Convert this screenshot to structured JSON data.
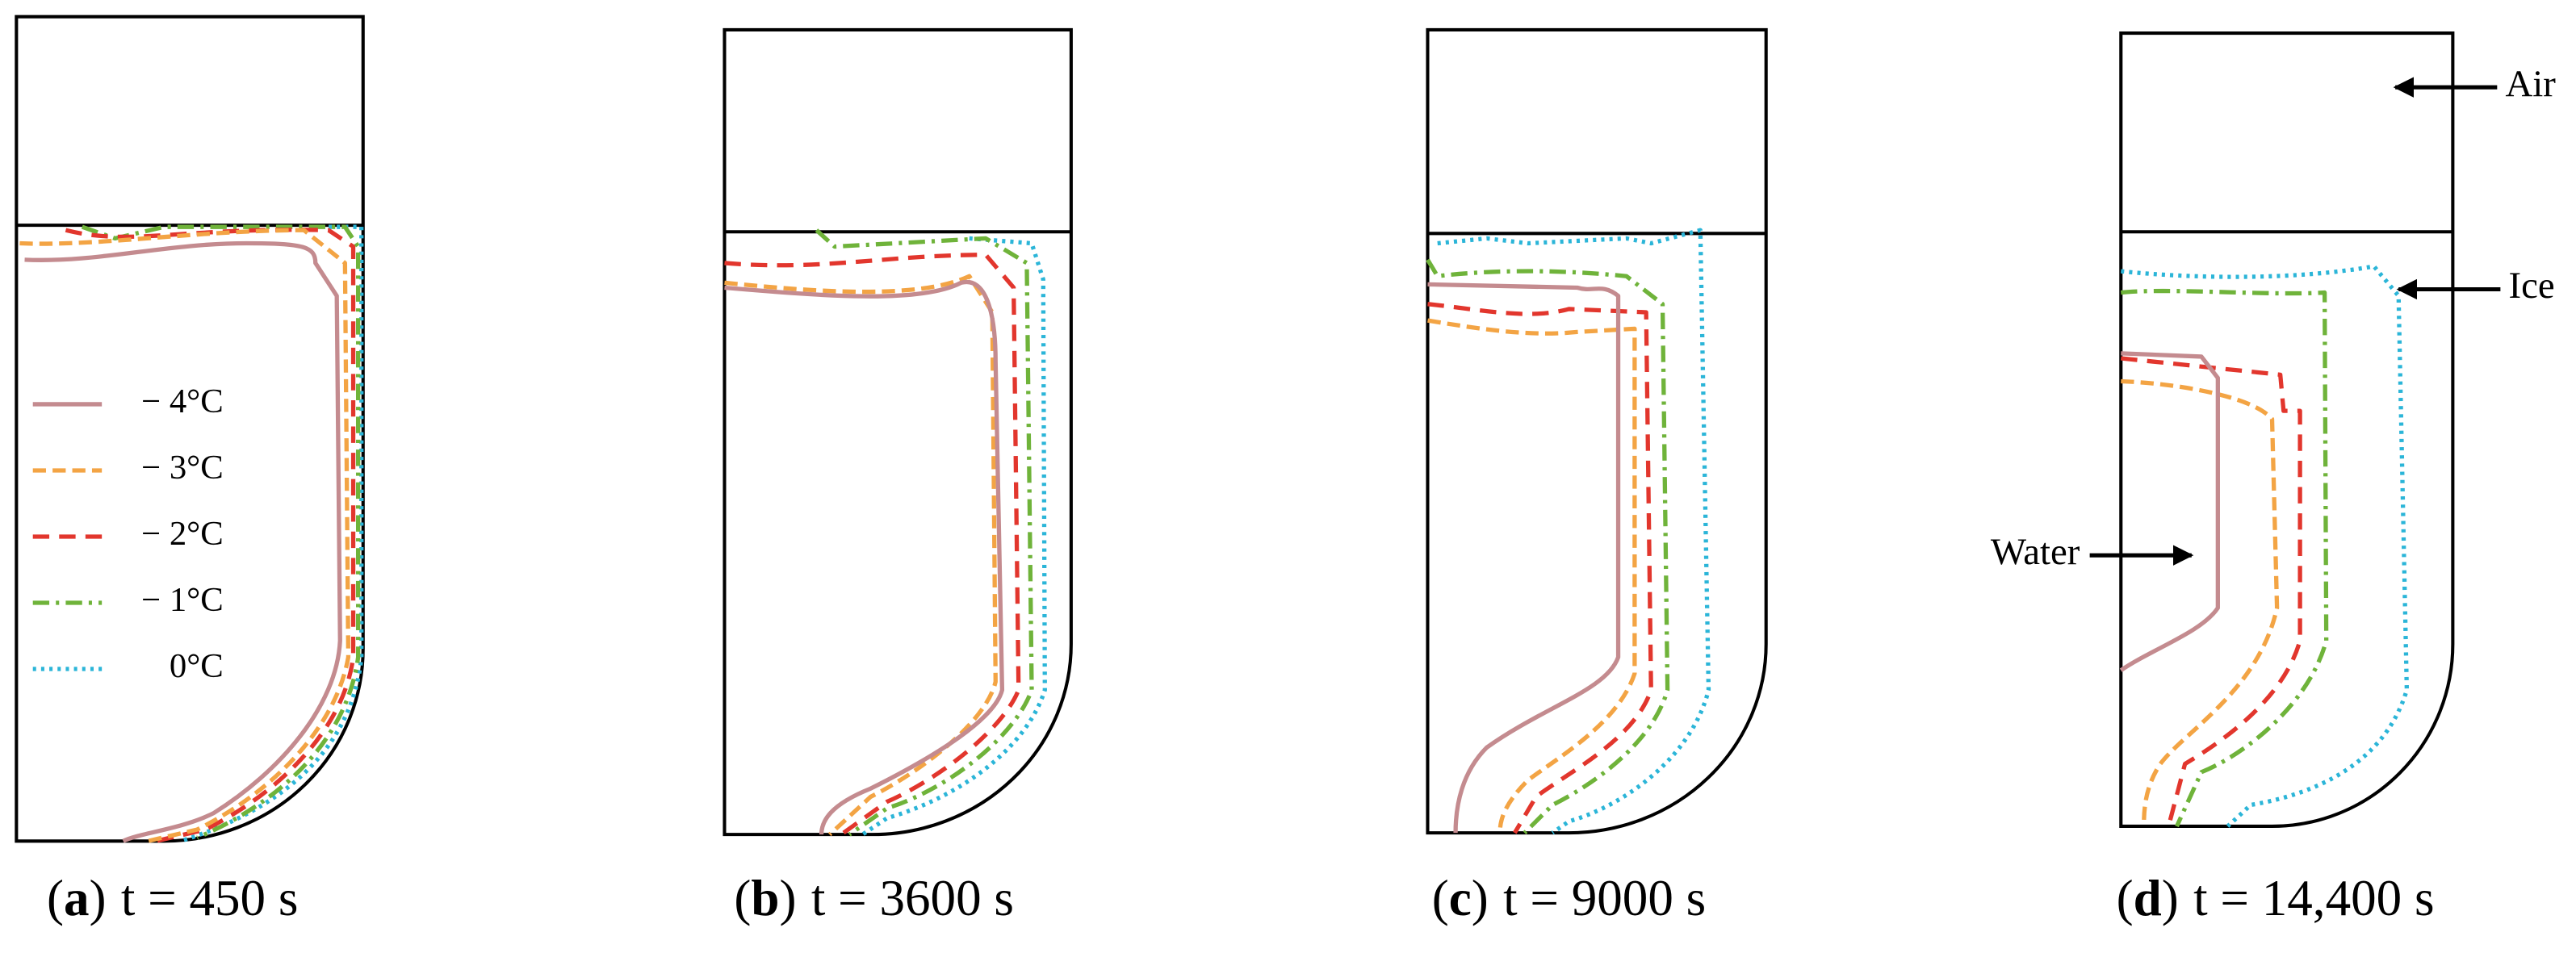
{
  "panels": [
    {
      "label": "(a)",
      "caption": "t = 450 s"
    },
    {
      "label": "(b)",
      "caption": "t = 3600 s"
    },
    {
      "label": "(c)",
      "caption": "t = 9000 s"
    },
    {
      "label": "(d)",
      "caption": "t = 14,400 s"
    }
  ],
  "legend": [
    {
      "label": "− 4°C",
      "color": "#c48b8f"
    },
    {
      "label": "− 3°C",
      "color": "#f3a444"
    },
    {
      "label": "− 2°C",
      "color": "#e2362d"
    },
    {
      "label": "− 1°C",
      "color": "#6fb33a"
    },
    {
      "label": "0°C",
      "color": "#2bb5d8"
    }
  ],
  "annotations": {
    "air": "Air",
    "ice": "Ice",
    "water": "Water"
  }
}
